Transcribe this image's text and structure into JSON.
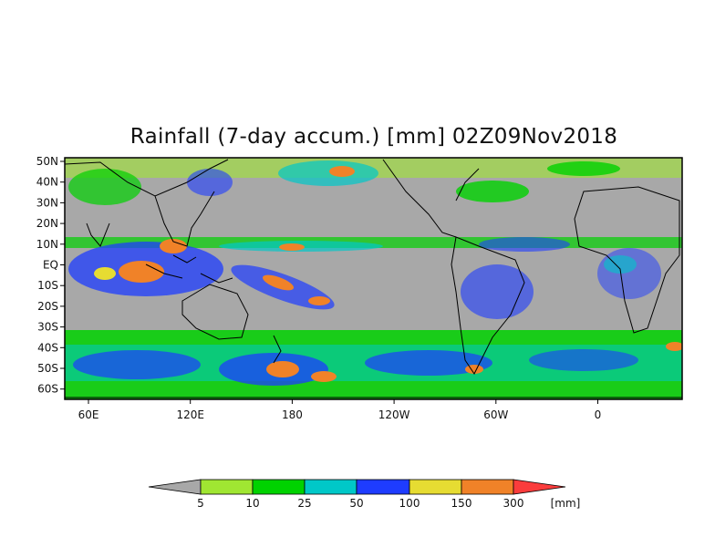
{
  "title": "Rainfall (7-day accum.) [mm] 02Z09Nov2018",
  "map": {
    "lat_labels": [
      "50N",
      "40N",
      "30N",
      "20N",
      "10N",
      "EQ",
      "10S",
      "20S",
      "30S",
      "40S",
      "50S",
      "60S"
    ],
    "lon_labels": [
      "60E",
      "120E",
      "180",
      "120W",
      "60W",
      "0"
    ],
    "background_color": "#a8a8a8",
    "frame_color": "#000000"
  },
  "colorbar": {
    "unit": "[mm]",
    "colors": [
      "#a8a8a8",
      "#a0e632",
      "#00d200",
      "#00c8c8",
      "#1e3cff",
      "#e6dc32",
      "#f08228",
      "#fa3c3c"
    ],
    "labels": [
      "5",
      "10",
      "25",
      "50",
      "100",
      "150",
      "300"
    ]
  }
}
